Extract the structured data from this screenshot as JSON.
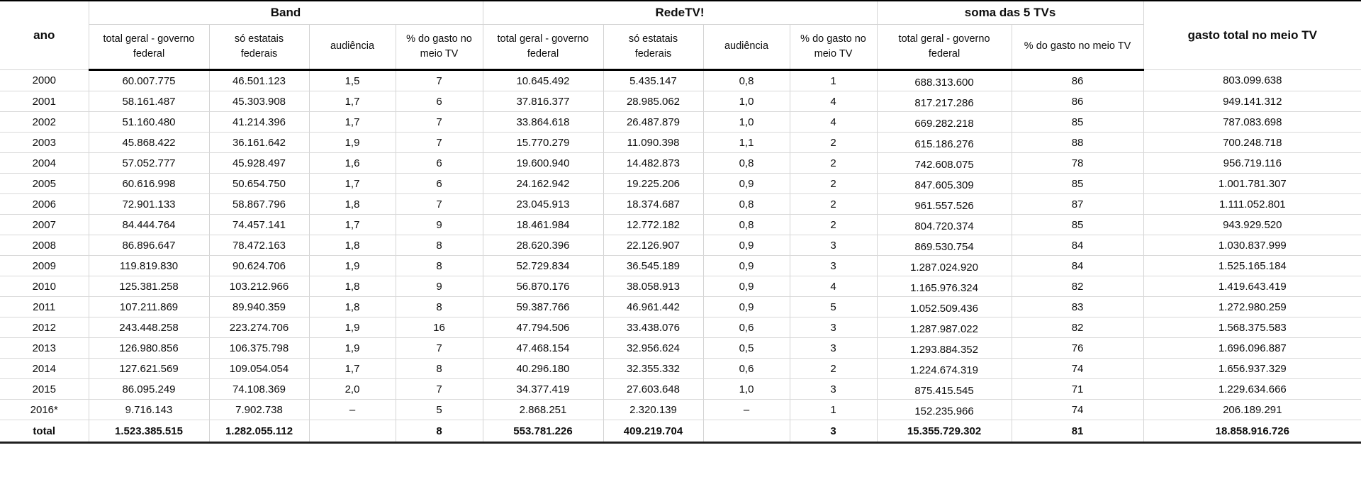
{
  "chart_data": {
    "type": "table",
    "corner_label": "ano",
    "group_headers": [
      {
        "label": "Band",
        "colspan": 4
      },
      {
        "label": "RedeTV!",
        "colspan": 4
      },
      {
        "label": "soma das 5 TVs",
        "colspan": 2
      }
    ],
    "last_column_label": "gasto total no meio TV",
    "sub_headers": [
      "total geral - governo federal",
      "só estatais federais",
      "audiência",
      "% do gasto no meio TV",
      "total geral - governo federal",
      "só estatais federais",
      "audiência",
      "% do gasto no meio TV",
      "total geral - governo federal",
      "% do gasto no meio TV"
    ],
    "rows": [
      [
        "2000",
        "60.007.775",
        "46.501.123",
        "1,5",
        "7",
        "10.645.492",
        "5.435.147",
        "0,8",
        "1",
        "688.313.600",
        "86",
        "803.099.638"
      ],
      [
        "2001",
        "58.161.487",
        "45.303.908",
        "1,7",
        "6",
        "37.816.377",
        "28.985.062",
        "1,0",
        "4",
        "817.217.286",
        "86",
        "949.141.312"
      ],
      [
        "2002",
        "51.160.480",
        "41.214.396",
        "1,7",
        "7",
        "33.864.618",
        "26.487.879",
        "1,0",
        "4",
        "669.282.218",
        "85",
        "787.083.698"
      ],
      [
        "2003",
        "45.868.422",
        "36.161.642",
        "1,9",
        "7",
        "15.770.279",
        "11.090.398",
        "1,1",
        "2",
        "615.186.276",
        "88",
        "700.248.718"
      ],
      [
        "2004",
        "57.052.777",
        "45.928.497",
        "1,6",
        "6",
        "19.600.940",
        "14.482.873",
        "0,8",
        "2",
        "742.608.075",
        "78",
        "956.719.116"
      ],
      [
        "2005",
        "60.616.998",
        "50.654.750",
        "1,7",
        "6",
        "24.162.942",
        "19.225.206",
        "0,9",
        "2",
        "847.605.309",
        "85",
        "1.001.781.307"
      ],
      [
        "2006",
        "72.901.133",
        "58.867.796",
        "1,8",
        "7",
        "23.045.913",
        "18.374.687",
        "0,8",
        "2",
        "961.557.526",
        "87",
        "1.111.052.801"
      ],
      [
        "2007",
        "84.444.764",
        "74.457.141",
        "1,7",
        "9",
        "18.461.984",
        "12.772.182",
        "0,8",
        "2",
        "804.720.374",
        "85",
        "943.929.520"
      ],
      [
        "2008",
        "86.896.647",
        "78.472.163",
        "1,8",
        "8",
        "28.620.396",
        "22.126.907",
        "0,9",
        "3",
        "869.530.754",
        "84",
        "1.030.837.999"
      ],
      [
        "2009",
        "119.819.830",
        "90.624.706",
        "1,9",
        "8",
        "52.729.834",
        "36.545.189",
        "0,9",
        "3",
        "1.287.024.920",
        "84",
        "1.525.165.184"
      ],
      [
        "2010",
        "125.381.258",
        "103.212.966",
        "1,8",
        "9",
        "56.870.176",
        "38.058.913",
        "0,9",
        "4",
        "1.165.976.324",
        "82",
        "1.419.643.419"
      ],
      [
        "2011",
        "107.211.869",
        "89.940.359",
        "1,8",
        "8",
        "59.387.766",
        "46.961.442",
        "0,9",
        "5",
        "1.052.509.436",
        "83",
        "1.272.980.259"
      ],
      [
        "2012",
        "243.448.258",
        "223.274.706",
        "1,9",
        "16",
        "47.794.506",
        "33.438.076",
        "0,6",
        "3",
        "1.287.987.022",
        "82",
        "1.568.375.583"
      ],
      [
        "2013",
        "126.980.856",
        "106.375.798",
        "1,9",
        "7",
        "47.468.154",
        "32.956.624",
        "0,5",
        "3",
        "1.293.884.352",
        "76",
        "1.696.096.887"
      ],
      [
        "2014",
        "127.621.569",
        "109.054.054",
        "1,7",
        "8",
        "40.296.180",
        "32.355.332",
        "0,6",
        "2",
        "1.224.674.319",
        "74",
        "1.656.937.329"
      ],
      [
        "2015",
        "86.095.249",
        "74.108.369",
        "2,0",
        "7",
        "34.377.419",
        "27.603.648",
        "1,0",
        "3",
        "875.415.545",
        "71",
        "1.229.634.666"
      ],
      [
        "2016*",
        "9.716.143",
        "7.902.738",
        "–",
        "5",
        "2.868.251",
        "2.320.139",
        "–",
        "1",
        "152.235.966",
        "74",
        "206.189.291"
      ],
      [
        "total",
        "1.523.385.515",
        "1.282.055.112",
        "",
        "8",
        "553.781.226",
        "409.219.704",
        "",
        "3",
        "15.355.729.302",
        "81",
        "18.858.916.726"
      ]
    ]
  }
}
